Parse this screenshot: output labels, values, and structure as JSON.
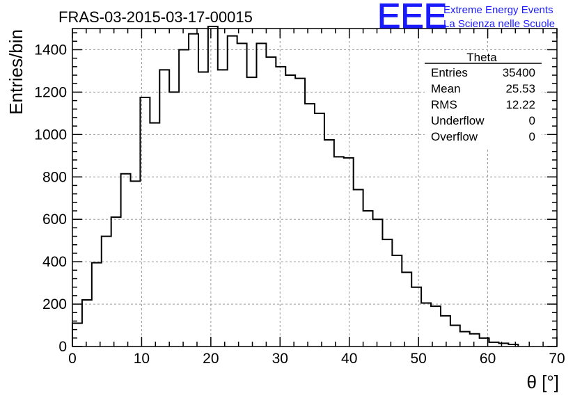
{
  "chart_data": {
    "type": "histogram",
    "title": "FRAS-03-2015-03-17-00015",
    "xlabel": "θ [°]",
    "ylabel": "Entries/bin",
    "xlim": [
      0,
      70
    ],
    "ylim": [
      0,
      1500
    ],
    "grid": true,
    "bin_width": 1.4,
    "x_ticks": [
      0,
      10,
      20,
      30,
      40,
      50,
      60,
      70
    ],
    "y_ticks": [
      0,
      200,
      400,
      600,
      800,
      1000,
      1200,
      1400
    ],
    "bin_edges": [
      0,
      1.4,
      2.8,
      4.2,
      5.6,
      7,
      8.4,
      9.8,
      11.2,
      12.6,
      14,
      15.4,
      16.8,
      18.2,
      19.6,
      21,
      22.4,
      23.8,
      25.2,
      26.6,
      28,
      29.4,
      30.8,
      32.2,
      33.6,
      35,
      36.4,
      37.8,
      39.2,
      40.6,
      42,
      43.4,
      44.8,
      46.2,
      47.6,
      49,
      50.4,
      51.8,
      53.2,
      54.6,
      56,
      57.4,
      58.8,
      60.2,
      61.6,
      63,
      64.4
    ],
    "values": [
      110,
      220,
      395,
      520,
      610,
      815,
      780,
      1175,
      1055,
      1305,
      1200,
      1400,
      1475,
      1295,
      1510,
      1305,
      1465,
      1430,
      1270,
      1430,
      1365,
      1320,
      1280,
      1265,
      1145,
      1100,
      975,
      895,
      890,
      740,
      640,
      600,
      505,
      430,
      350,
      280,
      205,
      190,
      145,
      100,
      70,
      60,
      40,
      20,
      15,
      10
    ]
  },
  "stats_box": {
    "title": "Theta",
    "rows": [
      {
        "label": "Entries",
        "value": "35400"
      },
      {
        "label": "Mean",
        "value": "25.53"
      },
      {
        "label": "RMS",
        "value": "12.22"
      },
      {
        "label": "Underflow",
        "value": "0"
      },
      {
        "label": "Overflow",
        "value": "0"
      }
    ]
  },
  "logo": {
    "mark": "EEE",
    "line1": "Extreme Energy Events",
    "line2": "La Scienza nelle Scuole",
    "color": "#1a1aff"
  }
}
